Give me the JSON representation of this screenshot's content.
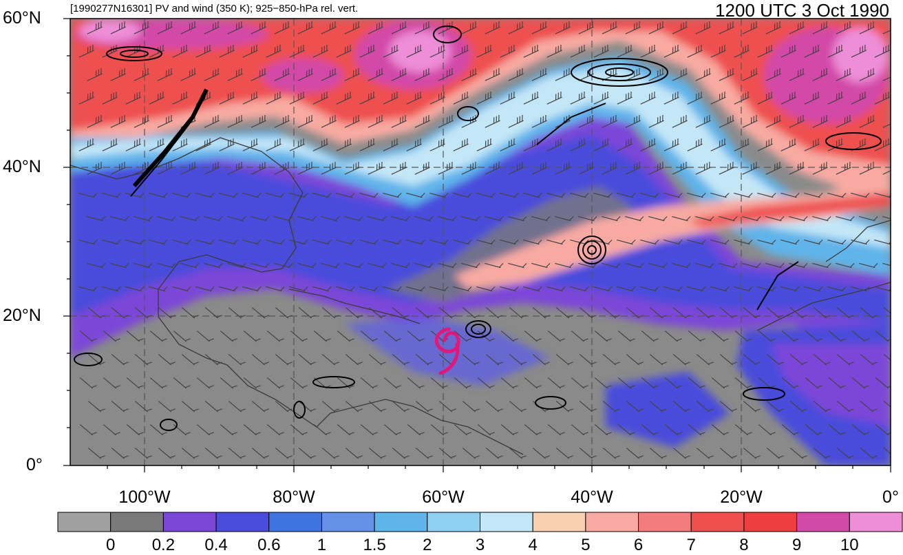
{
  "header": {
    "left_title": "[1990277N16301] PV and wind (350 K); 925−850-hPa rel. vert.",
    "right_title": "1200 UTC 3 Oct 1990"
  },
  "map": {
    "lat_labels": [
      "60°N",
      "40°N",
      "20°N",
      "0°"
    ],
    "lon_labels": [
      "100°W",
      "80°W",
      "60°W",
      "40°W",
      "20°W",
      "0°"
    ],
    "storm_marker": "tropical-cyclone-symbol"
  },
  "colorbar": {
    "labels": [
      "0",
      "0.2",
      "0.4",
      "0.6",
      "1",
      "1.5",
      "2",
      "3",
      "4",
      "5",
      "6",
      "7",
      "8",
      "9",
      "10"
    ],
    "colors": [
      "#a0a0a0",
      "#7a7a7a",
      "#7b47d8",
      "#4a4cdb",
      "#3f73e0",
      "#6591e8",
      "#5fb4ea",
      "#8fd0f2",
      "#c4e7f7",
      "#f9cfb2",
      "#f8aaa2",
      "#f37c7c",
      "#ee5050",
      "#ee3e3e",
      "#d24aa8",
      "#ee8ed8"
    ]
  }
}
